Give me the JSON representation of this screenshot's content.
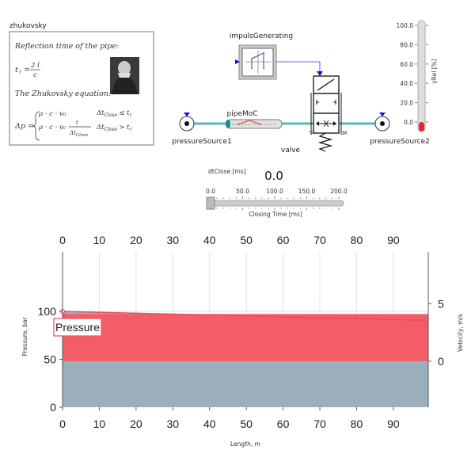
{
  "diagram": {
    "info_title": "zhukovsky",
    "info_box": {
      "line1": "Reflection time of the pipe:",
      "formula1_lhs": "t",
      "formula1_sub": "r",
      "formula1_num": "2 l",
      "formula1_den": "c",
      "line2": "The Zhukovsky equation:",
      "eq_lhs": "Δp =",
      "case1": "ρ · c · v₀",
      "case1_cond": "Δt",
      "case1_cond_sub": "Close",
      "case1_cond_rest": "≤ t",
      "case2": "ρ · c · v₀ ·",
      "case2_num": "t",
      "case2_den": "Δt",
      "case2_den_sub": "Close",
      "case2_cond": "Δt",
      "case2_cond_sub": "Close",
      "case2_cond_rest": "> t",
      "r": "r"
    },
    "components": {
      "impuls": "impulsGenerating",
      "pipe": "pipeMoC",
      "source1": "pressureSource1",
      "source2": "pressureSource2",
      "valve": "valve",
      "port_p": "P",
      "port_r": "R"
    },
    "gauge": {
      "label": "yRel [%]",
      "ticks": [
        "100.0",
        "80.0",
        "60.0",
        "40.0",
        "20.0",
        "0.0"
      ],
      "value_percent": 0
    },
    "slider": {
      "title": "dtClose [ms]",
      "value_text": "0.0",
      "ticks": [
        "0.0",
        "50.0",
        "100.0",
        "150.0",
        "200.0"
      ],
      "label": "Closing Time [ms]",
      "value": 0,
      "min": 0,
      "max": 200
    }
  },
  "chart_data": {
    "type": "area",
    "xlabel": "Length, m",
    "ylabel": "Pressure, bar",
    "y2label": "Velocity, m/s",
    "xlim": [
      0,
      99.5
    ],
    "ylim": [
      0,
      162
    ],
    "y2lim": [
      -4,
      9.5
    ],
    "x_ticks": [
      "0",
      "10",
      "20",
      "30",
      "40",
      "50",
      "60",
      "70",
      "80",
      "90"
    ],
    "y_ticks": [
      "0",
      "50",
      "100"
    ],
    "y2_ticks": [
      "0",
      "5"
    ],
    "grid": true,
    "series": [
      {
        "name": "Pressure",
        "axis": "left",
        "x": [
          0,
          99.5
        ],
        "values": [
          100,
          90.5
        ],
        "color": "#e8505b",
        "fill": "#9aafbb"
      },
      {
        "name": "Velocity",
        "axis": "right",
        "x": [
          0,
          99.5
        ],
        "values": [
          4.1,
          4.1
        ],
        "base": 0,
        "color": "#f45d68"
      }
    ],
    "annotation": "Pressure"
  }
}
